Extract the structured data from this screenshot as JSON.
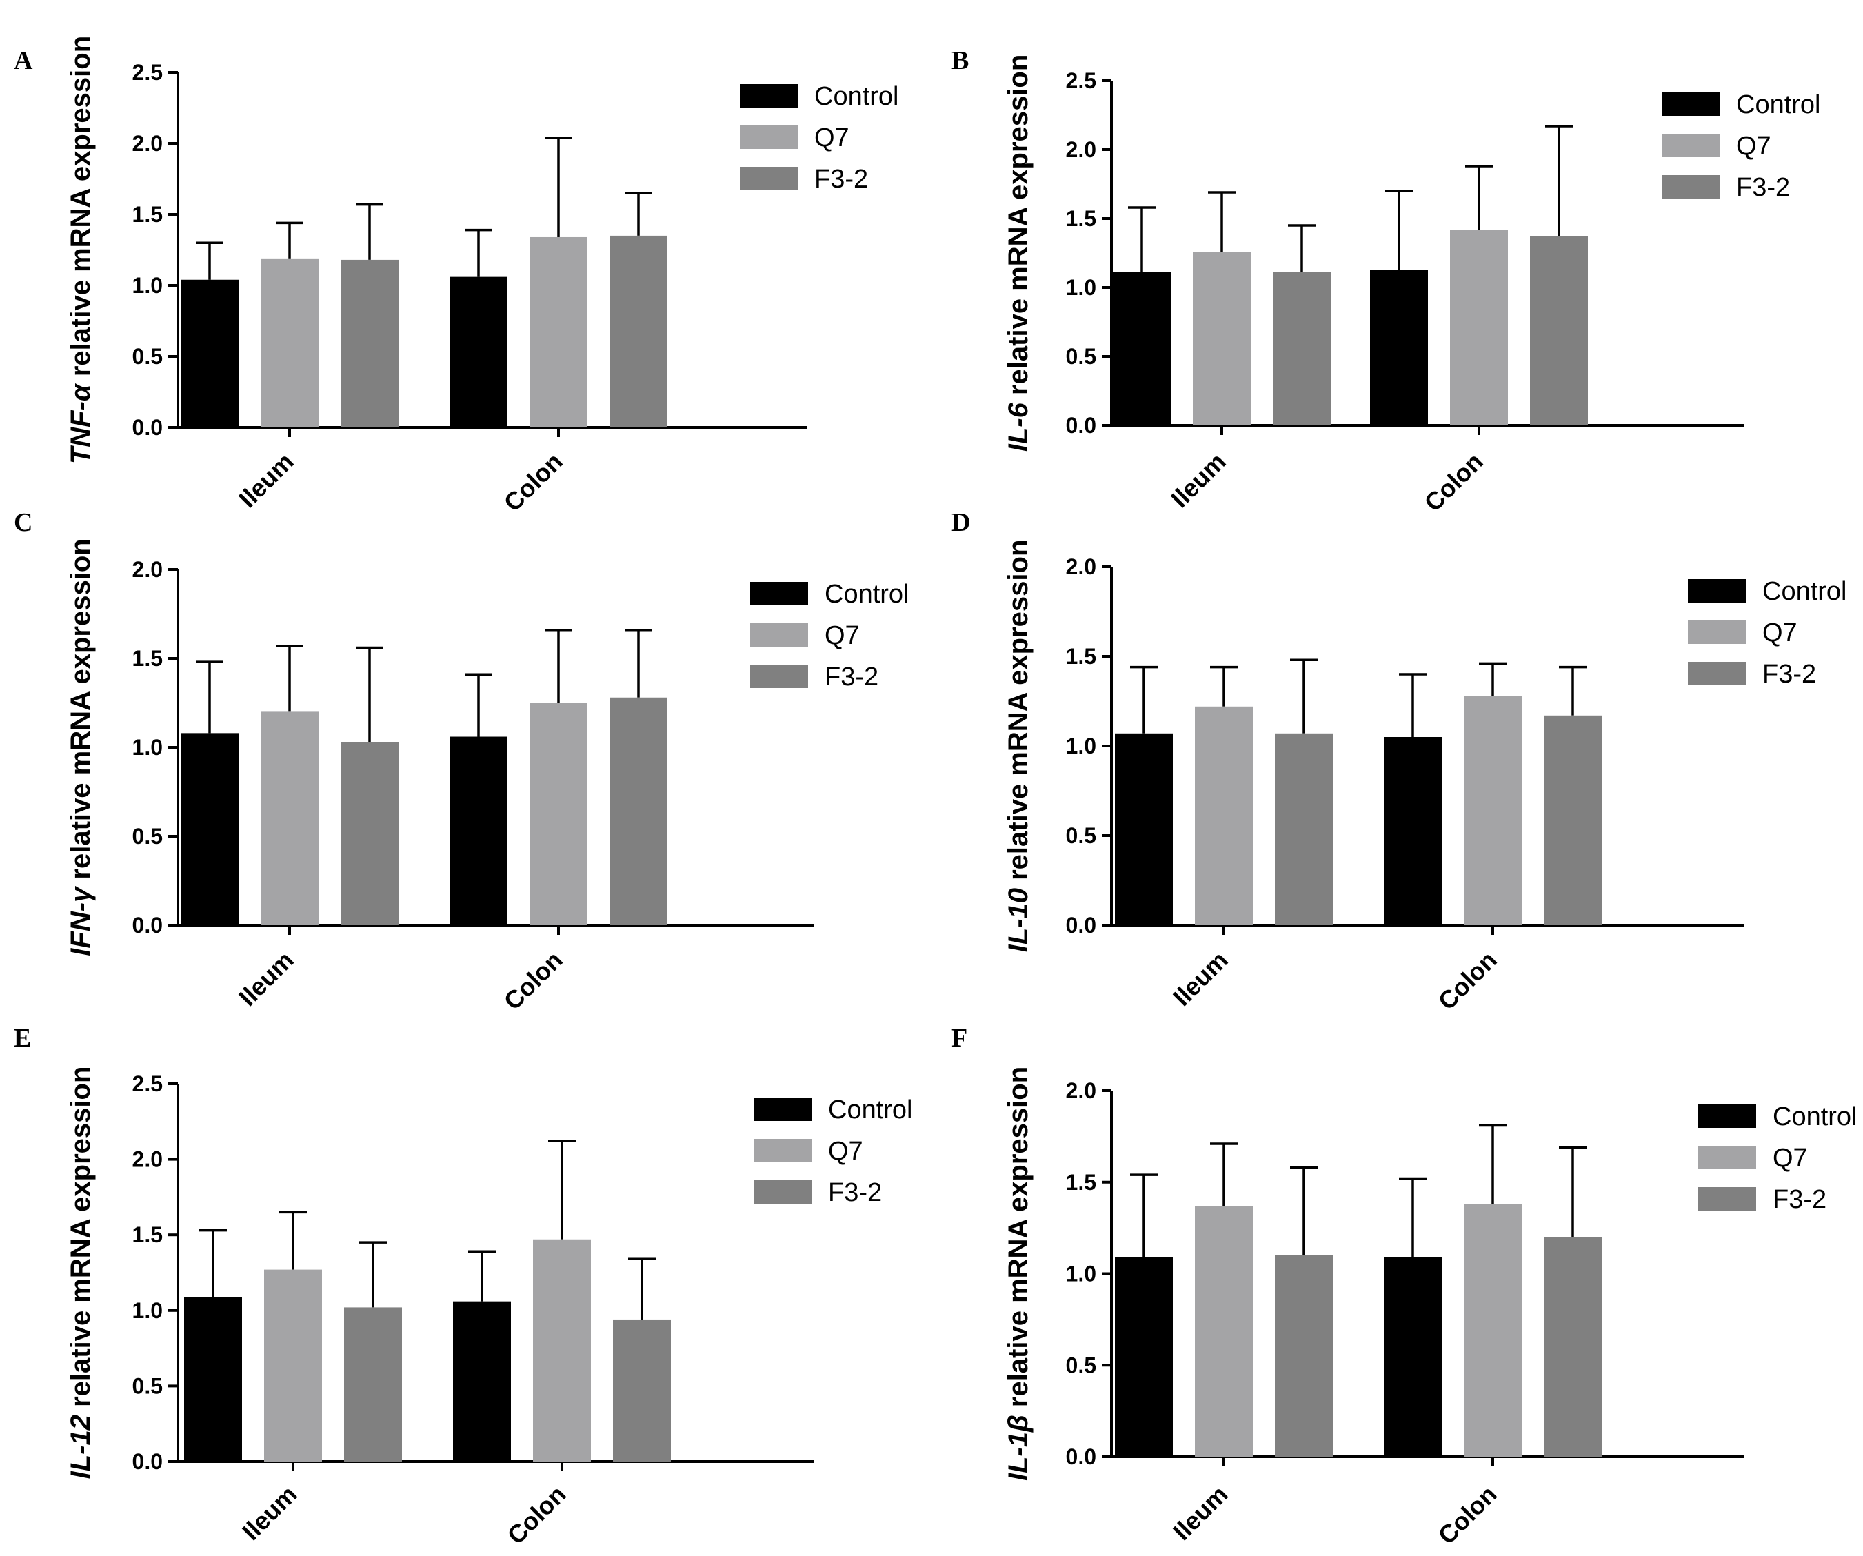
{
  "chart_data": [
    {
      "type": "bar",
      "panel": "A",
      "gene": "TNF-α",
      "ylabel_suffix": " relative mRNA expression",
      "categories": [
        "Ileum",
        "Colon"
      ],
      "ylim": [
        0,
        2.5
      ],
      "yticks": [
        "0.0",
        "0.5",
        "1.0",
        "1.5",
        "2.0",
        "2.5"
      ],
      "legend": "right",
      "series": [
        {
          "name": "Control",
          "values": [
            1.04,
            1.06
          ],
          "errors": [
            0.26,
            0.33
          ]
        },
        {
          "name": "Q7",
          "values": [
            1.19,
            1.34
          ],
          "errors": [
            0.25,
            0.7
          ]
        },
        {
          "name": "F3-2",
          "values": [
            1.18,
            1.35
          ],
          "errors": [
            0.39,
            0.3
          ]
        }
      ]
    },
    {
      "type": "bar",
      "panel": "B",
      "gene": "IL-6",
      "ylabel_suffix": " relative mRNA expression",
      "categories": [
        "Ileum",
        "Colon"
      ],
      "ylim": [
        0,
        2.5
      ],
      "yticks": [
        "0.0",
        "0.5",
        "1.0",
        "1.5",
        "2.0",
        "2.5"
      ],
      "legend": "right",
      "series": [
        {
          "name": "Control",
          "values": [
            1.11,
            1.13
          ],
          "errors": [
            0.47,
            0.57
          ]
        },
        {
          "name": "Q7",
          "values": [
            1.26,
            1.42
          ],
          "errors": [
            0.43,
            0.46
          ]
        },
        {
          "name": "F3-2",
          "values": [
            1.11,
            1.37
          ],
          "errors": [
            0.34,
            0.8
          ]
        }
      ]
    },
    {
      "type": "bar",
      "panel": "C",
      "gene": "IFN-γ",
      "ylabel_suffix": " relative mRNA expression",
      "categories": [
        "Ileum",
        "Colon"
      ],
      "ylim": [
        0,
        2.0
      ],
      "yticks": [
        "0.0",
        "0.5",
        "1.0",
        "1.5",
        "2.0"
      ],
      "legend": "right",
      "series": [
        {
          "name": "Control",
          "values": [
            1.08,
            1.06
          ],
          "errors": [
            0.4,
            0.35
          ]
        },
        {
          "name": "Q7",
          "values": [
            1.2,
            1.25
          ],
          "errors": [
            0.37,
            0.41
          ]
        },
        {
          "name": "F3-2",
          "values": [
            1.03,
            1.28
          ],
          "errors": [
            0.53,
            0.38
          ]
        }
      ]
    },
    {
      "type": "bar",
      "panel": "D",
      "gene": "IL-10",
      "ylabel_suffix": " relative mRNA expression",
      "categories": [
        "Ileum",
        "Colon"
      ],
      "ylim": [
        0,
        2.0
      ],
      "yticks": [
        "0.0",
        "0.5",
        "1.0",
        "1.5",
        "2.0"
      ],
      "legend": "right",
      "series": [
        {
          "name": "Control",
          "values": [
            1.07,
            1.05
          ],
          "errors": [
            0.37,
            0.35
          ]
        },
        {
          "name": "Q7",
          "values": [
            1.22,
            1.28
          ],
          "errors": [
            0.22,
            0.18
          ]
        },
        {
          "name": "F3-2",
          "values": [
            1.07,
            1.17
          ],
          "errors": [
            0.41,
            0.27
          ]
        }
      ]
    },
    {
      "type": "bar",
      "panel": "E",
      "gene": "IL-12",
      "ylabel_suffix": " relative mRNA expression",
      "categories": [
        "Ileum",
        "Colon"
      ],
      "ylim": [
        0,
        2.5
      ],
      "yticks": [
        "0.0",
        "0.5",
        "1.0",
        "1.5",
        "2.0",
        "2.5"
      ],
      "legend": "right",
      "series": [
        {
          "name": "Control",
          "values": [
            1.09,
            1.06
          ],
          "errors": [
            0.44,
            0.33
          ]
        },
        {
          "name": "Q7",
          "values": [
            1.27,
            1.47
          ],
          "errors": [
            0.38,
            0.65
          ]
        },
        {
          "name": "F3-2",
          "values": [
            1.02,
            0.94
          ],
          "errors": [
            0.43,
            0.4
          ]
        }
      ]
    },
    {
      "type": "bar",
      "panel": "F",
      "gene": "IL-1β",
      "ylabel_suffix": " relative mRNA expression",
      "categories": [
        "Ileum",
        "Colon"
      ],
      "ylim": [
        0,
        2.0
      ],
      "yticks": [
        "0.0",
        "0.5",
        "1.0",
        "1.5",
        "2.0"
      ],
      "legend": "right",
      "series": [
        {
          "name": "Control",
          "values": [
            1.09,
            1.09
          ],
          "errors": [
            0.45,
            0.43
          ]
        },
        {
          "name": "Q7",
          "values": [
            1.37,
            1.38
          ],
          "errors": [
            0.34,
            0.43
          ]
        },
        {
          "name": "F3-2",
          "values": [
            1.1,
            1.2
          ],
          "errors": [
            0.48,
            0.49
          ]
        }
      ]
    }
  ],
  "colors": {
    "Control": "#000000",
    "Q7": "#a4a4a6",
    "F3-2": "#808080",
    "axis": "#000000"
  }
}
